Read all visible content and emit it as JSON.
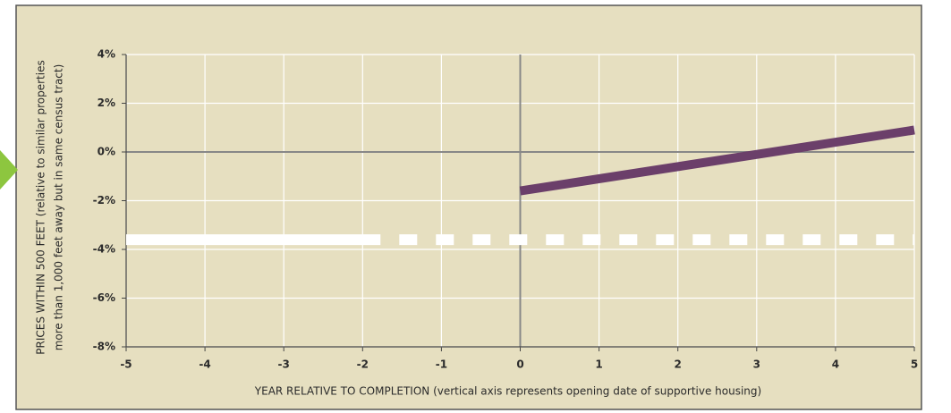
{
  "chart_data": {
    "type": "line",
    "x_label": "YEAR RELATIVE TO COMPLETION (vertical axis represents opening date of supportive housing)",
    "y_label": [
      "PRICES WITHIN 500 FEET (relative to similar properties",
      "more than 1,000 feet away but in same census tract)"
    ],
    "xlim": [
      -5,
      5
    ],
    "xticks": [
      -5,
      -4,
      -3,
      -2,
      -1,
      0,
      1,
      2,
      3,
      4,
      5
    ],
    "ylim": [
      -8,
      4
    ],
    "yticks": [
      {
        "value": -8,
        "label": "-8%"
      },
      {
        "value": -6,
        "label": "-6%"
      },
      {
        "value": -4,
        "label": "-4%"
      },
      {
        "value": -2,
        "label": "-2%"
      },
      {
        "value": 0,
        "label": "0%"
      },
      {
        "value": 2,
        "label": "2%"
      },
      {
        "value": 4,
        "label": "4%"
      }
    ],
    "grid": true,
    "series": [
      {
        "color": "#ffffff",
        "x": [
          -5,
          -2
        ],
        "values": [
          -3.6,
          -3.6
        ]
      },
      {
        "color": "#ffffff",
        "dashed": true,
        "x": [
          -2,
          5
        ],
        "values": [
          -3.6,
          -3.6
        ]
      },
      {
        "color": "#6b3f6a",
        "x": [
          0,
          5
        ],
        "values": [
          -1.6,
          0.9
        ]
      }
    ]
  }
}
